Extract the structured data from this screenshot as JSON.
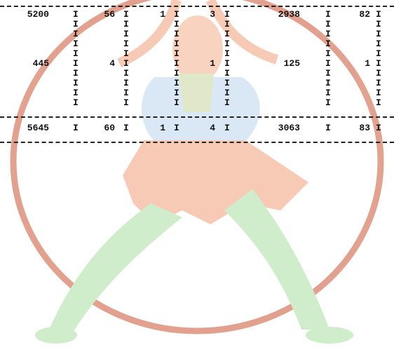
{
  "background": {
    "image": "jester-watermark",
    "colors": {
      "outline": "#cc5533",
      "skin": "#f2a07a",
      "tunic": "#bcd6ee",
      "legs": "#a9e0a0",
      "belt": "#6a8a3a"
    }
  },
  "separator_char": "I",
  "rows": [
    {
      "values": [
        "5200",
        "56",
        "1",
        "3",
        "2938",
        "82"
      ]
    },
    {
      "values": [
        "445",
        "4",
        "",
        "1",
        "125",
        "1"
      ]
    }
  ],
  "totals": {
    "values": [
      "5645",
      "60",
      "1",
      "4",
      "3063",
      "83"
    ]
  }
}
